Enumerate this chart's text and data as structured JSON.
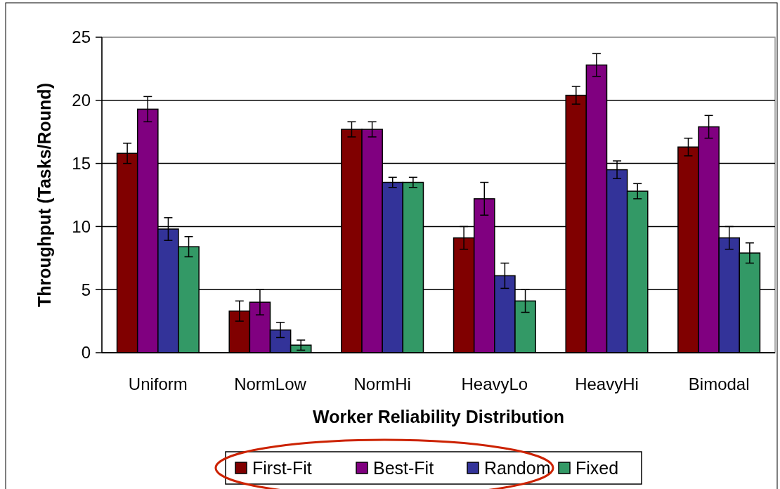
{
  "chart_data": {
    "type": "bar",
    "xlabel": "Worker Reliability Distribution",
    "ylabel": "Throughput (Tasks/Round)",
    "categories": [
      "Uniform",
      "NormLow",
      "NormHi",
      "HeavyLo",
      "HeavyHi",
      "Bimodal"
    ],
    "series": [
      {
        "name": "First-Fit",
        "color": "#800000",
        "values": [
          15.8,
          3.3,
          17.7,
          9.1,
          20.4,
          16.3
        ],
        "errors": [
          0.8,
          0.8,
          0.6,
          0.9,
          0.7,
          0.7
        ]
      },
      {
        "name": "Best-Fit",
        "color": "#800080",
        "values": [
          19.3,
          4.0,
          17.7,
          12.2,
          22.8,
          17.9
        ],
        "errors": [
          1.0,
          1.0,
          0.6,
          1.3,
          0.9,
          0.9
        ]
      },
      {
        "name": "Random",
        "color": "#333399",
        "values": [
          9.8,
          1.8,
          13.5,
          6.1,
          14.5,
          9.1
        ],
        "errors": [
          0.9,
          0.6,
          0.4,
          1.0,
          0.7,
          0.9
        ]
      },
      {
        "name": "Fixed",
        "color": "#339966",
        "values": [
          8.4,
          0.6,
          13.5,
          4.1,
          12.8,
          7.9
        ],
        "errors": [
          0.8,
          0.4,
          0.4,
          0.9,
          0.6,
          0.8
        ]
      }
    ],
    "ylim": [
      0,
      25
    ],
    "yticks": [
      0,
      5,
      10,
      15,
      20,
      25
    ],
    "grid": "y",
    "legend": "bottom"
  }
}
